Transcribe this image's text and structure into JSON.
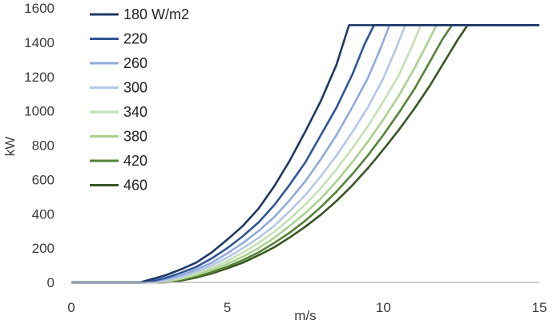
{
  "chart_data": {
    "type": "line",
    "xlabel": "m/s",
    "ylabel": "kW",
    "xlim": [
      0,
      15
    ],
    "ylim": [
      0,
      1600
    ],
    "xticks": [
      "0",
      "5",
      "10",
      "15"
    ],
    "yticks": [
      "0",
      "200",
      "400",
      "600",
      "800",
      "1000",
      "1200",
      "1400",
      "1600"
    ],
    "grid": false,
    "legend_position": "top-left",
    "series": [
      {
        "name": "180 W/m2",
        "color": "#1f3864",
        "x": [
          0,
          2.2,
          2.5,
          3,
          3.5,
          4,
          4.5,
          5,
          5.5,
          6,
          6.5,
          7,
          7.5,
          8,
          8.5,
          8.9,
          15
        ],
        "y": [
          0,
          0,
          15,
          40,
          75,
          115,
          175,
          250,
          330,
          430,
          560,
          710,
          880,
          1060,
          1270,
          1500,
          1500
        ]
      },
      {
        "name": "220",
        "color": "#2f5597",
        "x": [
          0,
          2.35,
          2.7,
          3,
          3.5,
          4,
          4.5,
          5,
          5.5,
          6,
          6.5,
          7,
          7.5,
          8,
          8.5,
          9,
          9.4,
          9.7,
          15
        ],
        "y": [
          0,
          0,
          12,
          25,
          55,
          90,
          140,
          200,
          270,
          350,
          450,
          570,
          700,
          860,
          1020,
          1210,
          1390,
          1500,
          1500
        ]
      },
      {
        "name": "260",
        "color": "#8faadc",
        "x": [
          0,
          2.5,
          3,
          3.5,
          4,
          4.5,
          5,
          5.5,
          6,
          6.5,
          7,
          7.5,
          8,
          8.5,
          9,
          9.5,
          9.9,
          10.2,
          15
        ],
        "y": [
          0,
          0,
          18,
          40,
          75,
          115,
          170,
          230,
          300,
          380,
          480,
          590,
          720,
          860,
          1020,
          1190,
          1360,
          1500,
          1500
        ]
      },
      {
        "name": "300",
        "color": "#b4c7e7",
        "x": [
          0,
          2.6,
          3,
          3.5,
          4,
          4.5,
          5,
          5.5,
          6,
          6.5,
          7,
          7.5,
          8,
          8.5,
          9,
          9.5,
          10,
          10.4,
          10.7,
          15
        ],
        "y": [
          0,
          0,
          12,
          32,
          62,
          100,
          145,
          200,
          260,
          330,
          415,
          510,
          620,
          740,
          875,
          1020,
          1190,
          1360,
          1500,
          1500
        ]
      },
      {
        "name": "340",
        "color": "#c5e0b4",
        "x": [
          0,
          2.7,
          3,
          3.5,
          4,
          4.5,
          5,
          5.5,
          6,
          6.5,
          7,
          7.5,
          8,
          8.5,
          9,
          9.5,
          10,
          10.5,
          10.9,
          11.2,
          15
        ],
        "y": [
          0,
          0,
          8,
          25,
          52,
          85,
          125,
          175,
          230,
          295,
          370,
          455,
          550,
          660,
          780,
          910,
          1055,
          1210,
          1370,
          1500,
          1500
        ]
      },
      {
        "name": "380",
        "color": "#a9d18e",
        "x": [
          0,
          2.8,
          3,
          3.5,
          4,
          4.5,
          5,
          5.5,
          6,
          6.5,
          7,
          7.5,
          8,
          8.5,
          9,
          9.5,
          10,
          10.5,
          11,
          11.4,
          11.7,
          15
        ],
        "y": [
          0,
          0,
          5,
          20,
          43,
          72,
          108,
          150,
          200,
          260,
          330,
          405,
          490,
          590,
          700,
          820,
          950,
          1090,
          1250,
          1390,
          1500,
          1500
        ]
      },
      {
        "name": "420",
        "color": "#548235",
        "x": [
          0,
          2.9,
          3.5,
          4,
          4.5,
          5,
          5.5,
          6,
          6.5,
          7,
          7.5,
          8,
          8.5,
          9,
          9.5,
          10,
          10.5,
          11,
          11.5,
          11.9,
          12.2,
          15
        ],
        "y": [
          0,
          0,
          15,
          35,
          60,
          92,
          130,
          175,
          230,
          290,
          360,
          440,
          530,
          630,
          740,
          860,
          990,
          1130,
          1290,
          1420,
          1500,
          1500
        ]
      },
      {
        "name": "460",
        "color": "#375623",
        "x": [
          0,
          3.0,
          3.5,
          4,
          4.5,
          5,
          5.5,
          6,
          6.5,
          7,
          7.5,
          8,
          8.5,
          9,
          9.5,
          10,
          10.5,
          11,
          11.5,
          12,
          12.4,
          12.7,
          15
        ],
        "y": [
          0,
          0,
          10,
          28,
          52,
          82,
          115,
          158,
          205,
          262,
          325,
          395,
          475,
          565,
          665,
          775,
          890,
          1015,
          1150,
          1300,
          1420,
          1500,
          1500
        ]
      }
    ]
  }
}
